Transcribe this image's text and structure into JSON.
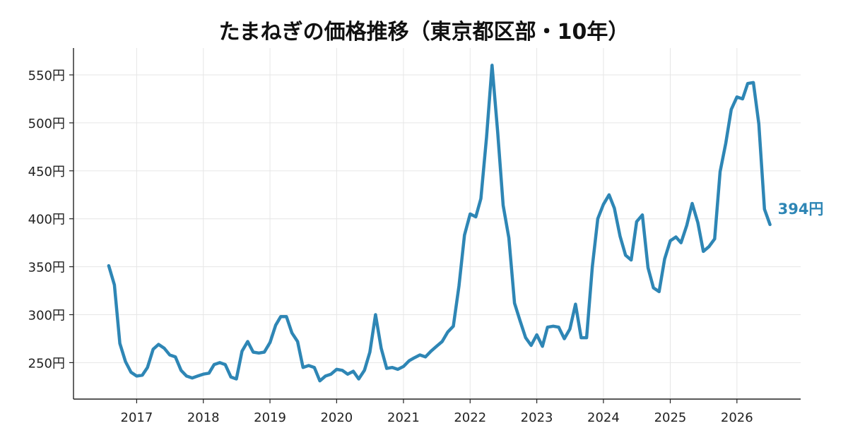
{
  "chart_data": {
    "type": "line",
    "title": "たまねぎの価格推移（東京都区部・10年）",
    "xlabel": "",
    "ylabel": "",
    "y_unit": "円",
    "xlim": [
      "2016-01-21",
      "2026-12-16"
    ],
    "ylim": [
      212,
      578
    ],
    "x_ticks": [
      "2017",
      "2018",
      "2019",
      "2020",
      "2021",
      "2022",
      "2023",
      "2024",
      "2025",
      "2026"
    ],
    "y_ticks": [
      "250円",
      "300円",
      "350円",
      "400円",
      "450円",
      "500円",
      "550円"
    ],
    "grid": true,
    "legend": "none",
    "line_color": "#2e86b5",
    "end_label": "394円",
    "series": [
      {
        "x": [
          "2016-08",
          "2016-09",
          "2016-10",
          "2016-11",
          "2016-12",
          "2017-01",
          "2017-02",
          "2017-03",
          "2017-04",
          "2017-05",
          "2017-06",
          "2017-07",
          "2017-08",
          "2017-09",
          "2017-10",
          "2017-11",
          "2017-12",
          "2018-01",
          "2018-02",
          "2018-03",
          "2018-04",
          "2018-05",
          "2018-06",
          "2018-07",
          "2018-08",
          "2018-09",
          "2018-10",
          "2018-11",
          "2018-12",
          "2019-01",
          "2019-02",
          "2019-03",
          "2019-04",
          "2019-05",
          "2019-06",
          "2019-07",
          "2019-08",
          "2019-09",
          "2019-10",
          "2019-11",
          "2019-12",
          "2020-01",
          "2020-02",
          "2020-03",
          "2020-04",
          "2020-05",
          "2020-06",
          "2020-07",
          "2020-08",
          "2020-09",
          "2020-10",
          "2020-11",
          "2020-12",
          "2021-01",
          "2021-02",
          "2021-03",
          "2021-04",
          "2021-05",
          "2021-06",
          "2021-07",
          "2021-08",
          "2021-09",
          "2021-10",
          "2021-11",
          "2021-12",
          "2022-01",
          "2022-02",
          "2022-03",
          "2022-04",
          "2022-05",
          "2022-06",
          "2022-07",
          "2022-08",
          "2022-09",
          "2022-10",
          "2022-11",
          "2022-12",
          "2023-01",
          "2023-02",
          "2023-03",
          "2023-04",
          "2023-05",
          "2023-06",
          "2023-07",
          "2023-08",
          "2023-09",
          "2023-10",
          "2023-11",
          "2023-12",
          "2024-01",
          "2024-02",
          "2024-03",
          "2024-04",
          "2024-05",
          "2024-06",
          "2024-07",
          "2024-08",
          "2024-09",
          "2024-10",
          "2024-11",
          "2024-12",
          "2025-01",
          "2025-02",
          "2025-03",
          "2025-04",
          "2025-05",
          "2025-06",
          "2025-07",
          "2025-08",
          "2025-09",
          "2025-10",
          "2025-11",
          "2025-12",
          "2026-01",
          "2026-02",
          "2026-03",
          "2026-04",
          "2026-05",
          "2026-06",
          "2026-07"
        ],
        "values": [
          351,
          331,
          270,
          251,
          240,
          236,
          237,
          245,
          264,
          269,
          265,
          258,
          256,
          242,
          236,
          234,
          236,
          238,
          239,
          248,
          250,
          248,
          235,
          233,
          262,
          272,
          261,
          260,
          261,
          271,
          289,
          298,
          298,
          281,
          272,
          245,
          247,
          245,
          231,
          236,
          238,
          243,
          242,
          238,
          241,
          233,
          242,
          261,
          300,
          265,
          244,
          245,
          243,
          246,
          252,
          255,
          258,
          256,
          262,
          267,
          272,
          282,
          288,
          330,
          383,
          405,
          402,
          421,
          485,
          560,
          490,
          414,
          380,
          312,
          294,
          276,
          268,
          279,
          267,
          287,
          288,
          287,
          275,
          285,
          311,
          276,
          276,
          350,
          400,
          415,
          425,
          411,
          382,
          362,
          357,
          397,
          404,
          349,
          328,
          324,
          358,
          377,
          381,
          375,
          393,
          416,
          396,
          366,
          371,
          379,
          449,
          479,
          514,
          527,
          525,
          541,
          542,
          499,
          410,
          394
        ]
      }
    ]
  }
}
